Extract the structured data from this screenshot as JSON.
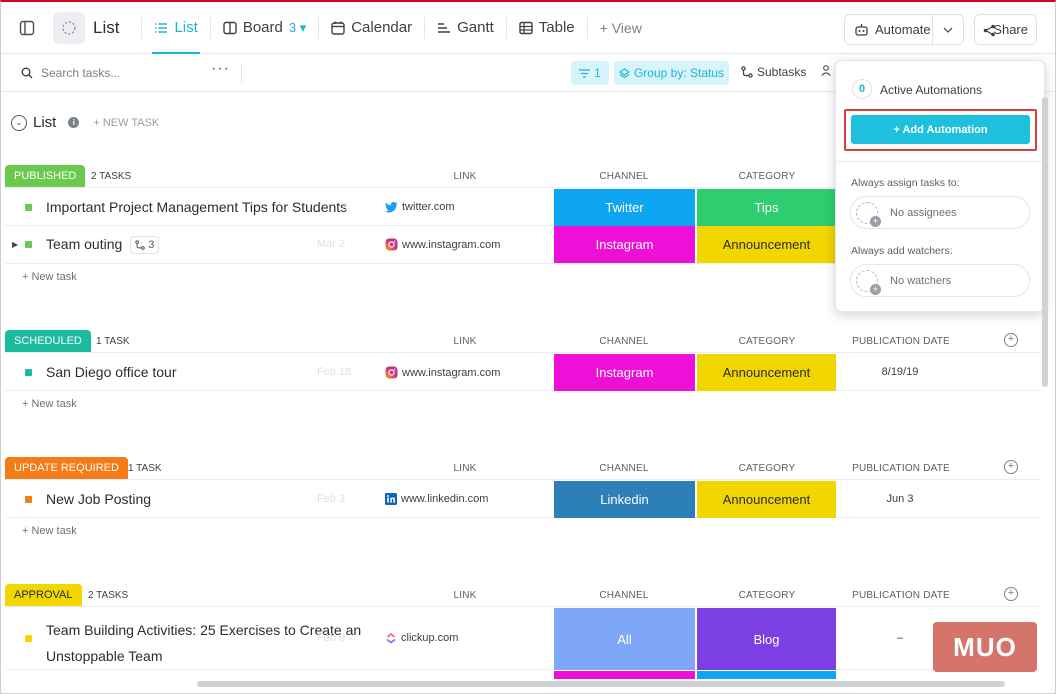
{
  "header": {
    "list_title": "List",
    "tabs": [
      {
        "label": "List"
      },
      {
        "label": "Board",
        "count": "3"
      },
      {
        "label": "Calendar"
      },
      {
        "label": "Gantt"
      },
      {
        "label": "Table"
      }
    ],
    "add_view": "+ View",
    "automate": "Automate",
    "share": "Share"
  },
  "toolbar": {
    "search_placeholder": "Search tasks...",
    "filter_count": "1",
    "group_by": "Group by: Status",
    "subtasks": "Subtasks"
  },
  "list": {
    "title": "List",
    "new_task": "+ NEW TASK"
  },
  "columns": {
    "link": "LINK",
    "channel": "CHANNEL",
    "category": "CATEGORY",
    "pubdate": "PUBLICATION DATE"
  },
  "new_task_row": "+ New task",
  "groups": [
    {
      "status": "PUBLISHED",
      "count": "2 TASKS",
      "color": "#6bc950",
      "tasks": [
        {
          "name": "Important Project Management Tips for Students",
          "date": "2",
          "link": "twitter.com",
          "channel": "Twitter",
          "channel_color": "#0ea5f2",
          "category": "Tips",
          "category_color": "#2ecd6f",
          "category_text_color": "#ffffff",
          "pubdate": ""
        },
        {
          "name": "Team outing",
          "subtasks": "3",
          "date": "Mar 2",
          "link": "www.instagram.com",
          "channel": "Instagram",
          "channel_color": "#ee10d6",
          "category": "Announcement",
          "category_color": "#f2d600",
          "category_text_color": "#292d34",
          "pubdate": ""
        }
      ]
    },
    {
      "status": "SCHEDULED",
      "count": "1 TASK",
      "color": "#1bbc9c",
      "tasks": [
        {
          "name": "San Diego office tour",
          "date": "Feb 18",
          "link": "www.instagram.com",
          "channel": "Instagram",
          "channel_color": "#ee10d6",
          "category": "Announcement",
          "category_color": "#f2d600",
          "category_text_color": "#292d34",
          "pubdate": "8/19/19"
        }
      ]
    },
    {
      "status": "UPDATE REQUIRED",
      "count": "1 TASK",
      "color": "#f47b16",
      "tasks": [
        {
          "name": "New Job Posting",
          "date": "Feb 3",
          "link": "www.linkedin.com",
          "channel": "Linkedin",
          "channel_color": "#2c7fb8",
          "category": "Announcement",
          "category_color": "#f2d600",
          "category_text_color": "#292d34",
          "pubdate": "Jun 3"
        }
      ]
    },
    {
      "status": "APPROVAL",
      "count": "2 TASKS",
      "color": "#f2d600",
      "tasks": [
        {
          "name_line1": "Team Building Activities: 25 Exercises to Create an",
          "name_line2": "Unstoppable Team",
          "date": "Feb 9",
          "link": "clickup.com",
          "channel": "All",
          "channel_color": "#7fa7f7",
          "category": "Blog",
          "category_color": "#7b3fe4",
          "category_text_color": "#ffffff",
          "pubdate": "–"
        }
      ]
    }
  ],
  "automation_popover": {
    "active_count": "0",
    "active_label": "Active Automations",
    "add_button": "+ Add Automation",
    "assign_label": "Always assign tasks to:",
    "assign_value": "No assignees",
    "watchers_label": "Always add watchers:",
    "watchers_value": "No watchers"
  },
  "watermark": "MUO"
}
